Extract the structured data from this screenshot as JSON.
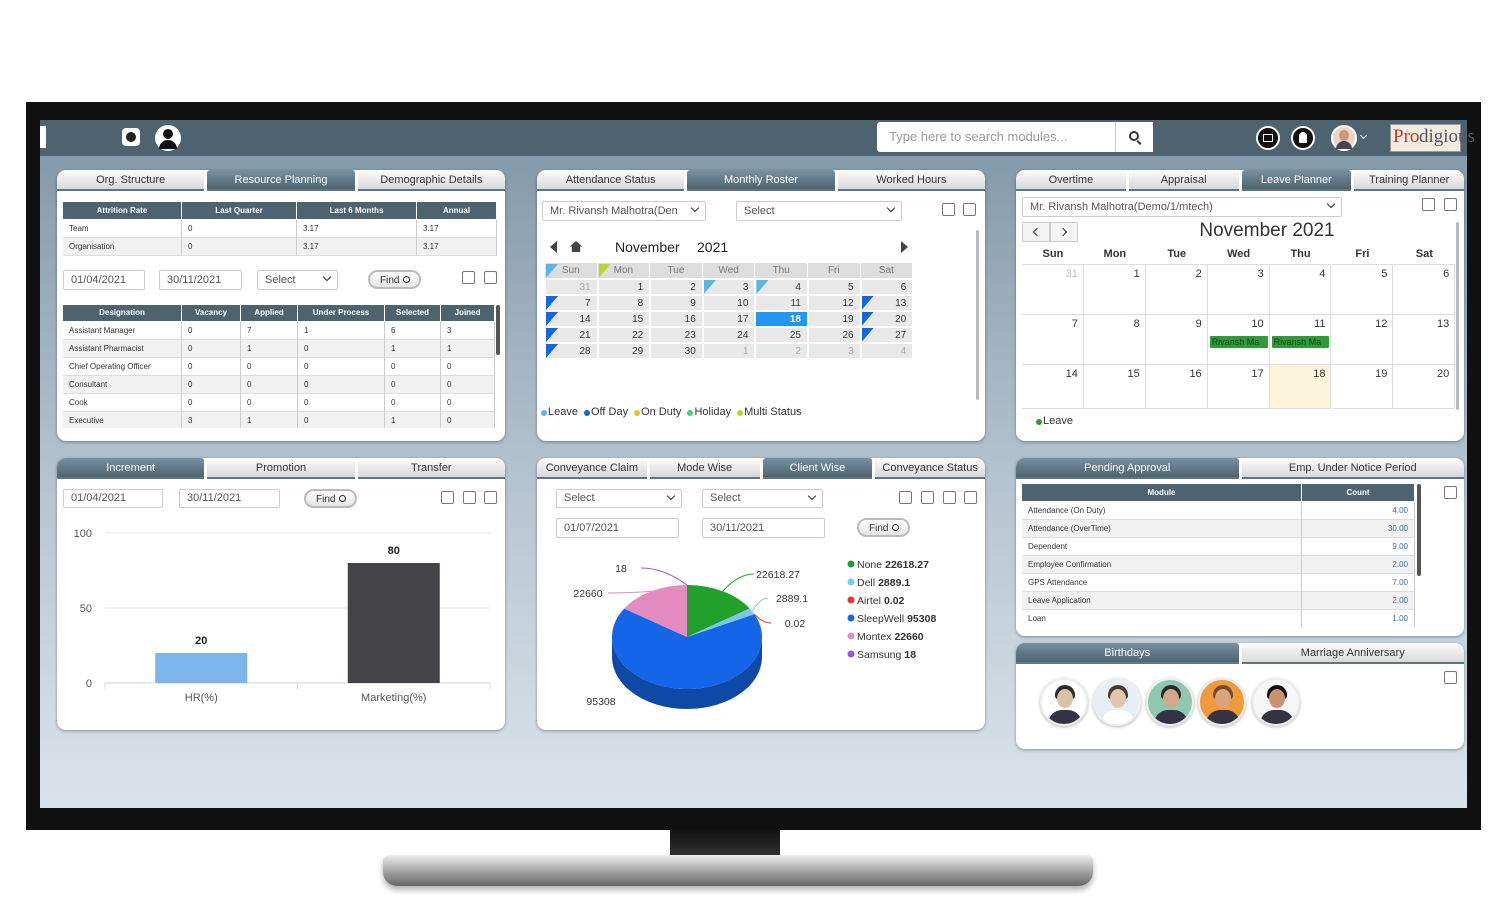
{
  "header": {
    "search_placeholder": "Type here to search modules...",
    "logo": [
      "Pro",
      "digious"
    ]
  },
  "resource_planning": {
    "tabs": [
      "Org. Structure",
      "Resource Planning",
      "Demographic Details"
    ],
    "active_tab": 1,
    "attrition": {
      "headers": [
        "Attrition Rate",
        "Last Quarter",
        "Last 6 Months",
        "Annual"
      ],
      "rows": [
        [
          "Team",
          "0",
          "3.17",
          "3.17"
        ],
        [
          "Organisation",
          "0",
          "3.17",
          "3.17"
        ]
      ]
    },
    "filters": {
      "from": "01/04/2021",
      "to": "30/11/2021",
      "select": "Select",
      "find": "Find"
    },
    "designations": {
      "headers": [
        "Designation",
        "Vacancy",
        "Applied",
        "Under Process",
        "Selected",
        "Joined"
      ],
      "rows": [
        [
          "Assistant Manager",
          "0",
          "7",
          "1",
          "6",
          "3"
        ],
        [
          "Assistant Pharmacist",
          "0",
          "1",
          "0",
          "1",
          "1"
        ],
        [
          "Chief Operating Officer",
          "0",
          "0",
          "0",
          "0",
          "0"
        ],
        [
          "Consultant",
          "0",
          "0",
          "0",
          "0",
          "0"
        ],
        [
          "Cook",
          "0",
          "0",
          "0",
          "0",
          "0"
        ],
        [
          "Executive",
          "3",
          "1",
          "0",
          "1",
          "0"
        ]
      ]
    }
  },
  "monthly_roster": {
    "tabs": [
      "Attendance Status",
      "Monthly Roster",
      "Worked Hours"
    ],
    "active_tab": 1,
    "employee": "Mr. Rivansh Malhotra(Den",
    "select": "Select",
    "month": "November",
    "year": "2021",
    "weekdays": [
      "Sun",
      "Mon",
      "Tue",
      "Wed",
      "Thu",
      "Fri",
      "Sat"
    ],
    "weeks": [
      [
        31,
        1,
        2,
        3,
        4,
        5,
        6
      ],
      [
        7,
        8,
        9,
        10,
        11,
        12,
        13
      ],
      [
        14,
        15,
        16,
        17,
        18,
        19,
        20
      ],
      [
        21,
        22,
        23,
        24,
        25,
        26,
        27
      ],
      [
        28,
        29,
        30,
        1,
        2,
        3,
        4
      ]
    ],
    "today": 18,
    "legend": [
      {
        "name": "Leave",
        "color": "#5ab4e8"
      },
      {
        "name": "Off Day",
        "color": "#1565e0"
      },
      {
        "name": "On Duty",
        "color": "#f0c020"
      },
      {
        "name": "Holiday",
        "color": "#4cd07a"
      },
      {
        "name": "Multi Status",
        "color": "#b8d820"
      }
    ]
  },
  "leave_planner": {
    "tabs": [
      "Overtime",
      "Appraisal",
      "Leave Planner",
      "Training Planner"
    ],
    "active_tab": 2,
    "employee": "Mr. Rivansh Malhotra(Demo/1/mtech)",
    "title": "November 2021",
    "weekdays": [
      "Sun",
      "Mon",
      "Tue",
      "Wed",
      "Thu",
      "Fri",
      "Sat"
    ],
    "weeks": [
      [
        31,
        1,
        2,
        3,
        4,
        5,
        6
      ],
      [
        7,
        8,
        9,
        10,
        11,
        12,
        13
      ],
      [
        14,
        15,
        16,
        17,
        18,
        19,
        20
      ]
    ],
    "highlight": 18,
    "events": [
      {
        "week": 1,
        "day": 3,
        "label": "Rivansh Ma"
      },
      {
        "week": 1,
        "day": 4,
        "label": "Rivansh Ma"
      }
    ],
    "legend": [
      {
        "name": "Leave",
        "color": "#2e9b3a"
      }
    ]
  },
  "increment": {
    "tabs": [
      "Increment",
      "Promotion",
      "Transfer"
    ],
    "active_tab": 0,
    "filters": {
      "from": "01/04/2021",
      "to": "30/11/2021",
      "find": "Find"
    }
  },
  "conveyance": {
    "tabs": [
      "Conveyance Claim",
      "Mode Wise",
      "Client Wise",
      "Conveyance Status"
    ],
    "active_tab": 2,
    "filters": {
      "select_a": "Select",
      "select_b": "Select",
      "from": "01/07/2021",
      "to": "30/11/2021",
      "find": "Find"
    }
  },
  "pending_approval": {
    "tabs": [
      "Pending Approval",
      "Emp. Under Notice Period"
    ],
    "active_tab": 0,
    "headers": [
      "Module",
      "Count"
    ],
    "rows": [
      [
        "Attendance (On Duty)",
        "4.00"
      ],
      [
        "Attendance (OverTime)",
        "30.00"
      ],
      [
        "Dependent",
        "9.00"
      ],
      [
        "Employee Confirmation",
        "2.00"
      ],
      [
        "GPS Attendance",
        "7.00"
      ],
      [
        "Leave Application",
        "2.00"
      ],
      [
        "Loan",
        "1.00"
      ]
    ]
  },
  "birthdays": {
    "tabs": [
      "Birthdays",
      "Marriage Anniversary"
    ],
    "active_tab": 0
  },
  "chart_data": [
    {
      "type": "bar",
      "categories": [
        "HR(%)",
        "Marketing(%)"
      ],
      "values": [
        20,
        80
      ],
      "colors": [
        "#7cb5ec",
        "#434348"
      ],
      "ylim": [
        0,
        100
      ],
      "yticks": [
        0,
        50,
        100
      ],
      "grid": true
    },
    {
      "type": "pie",
      "categories": [
        "None",
        "Dell",
        "Airtel",
        "SleepWell",
        "Montex",
        "Samsung"
      ],
      "values": [
        22618.27,
        2889.1,
        0.02,
        95308,
        22660,
        18
      ],
      "colors": [
        "#22a02c",
        "#7cc8ec",
        "#e53935",
        "#1565e8",
        "#e48cc0",
        "#a050e0"
      ]
    }
  ]
}
